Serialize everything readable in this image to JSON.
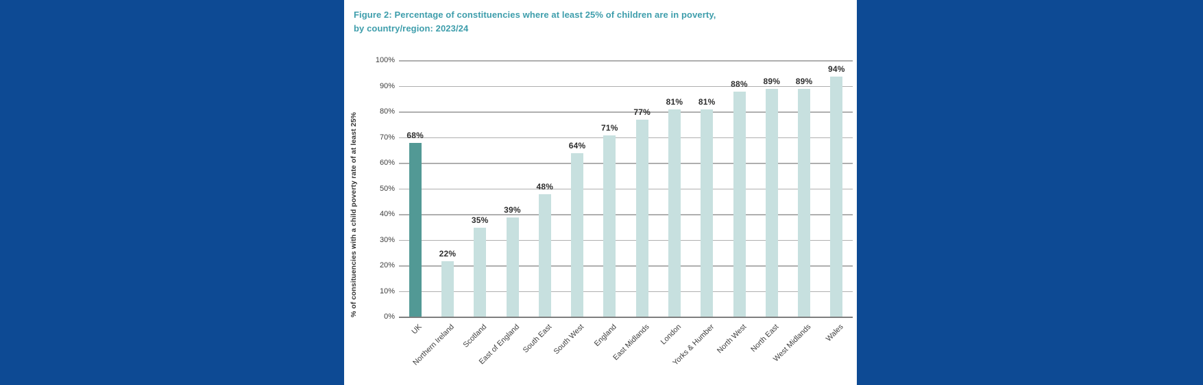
{
  "page": {
    "background_color": "#0d4a94",
    "panel_color": "#ffffff"
  },
  "chart_data": {
    "type": "bar",
    "title_line1": "Figure 2: Percentage of constituencies where at least 25% of children are in poverty,",
    "title_line2": "by country/region: 2023/24",
    "ylabel": "% of consituencies with a child poverty rate of at least 25%",
    "categories": [
      "UK",
      "Northern Ireland",
      "Scotland",
      "East of England",
      "South East",
      "South West",
      "England",
      "East Midlands",
      "London",
      "Yorks & Humber",
      "North West",
      "North East",
      "West Midlands",
      "Wales"
    ],
    "values": [
      68,
      22,
      35,
      39,
      48,
      64,
      71,
      77,
      81,
      81,
      88,
      89,
      89,
      94
    ],
    "data_labels": [
      "68%",
      "22%",
      "35%",
      "39%",
      "48%",
      "64%",
      "71%",
      "77%",
      "81%",
      "81%",
      "88%",
      "89%",
      "89%",
      "94%"
    ],
    "highlight_index": 0,
    "ylim": [
      0,
      100
    ],
    "yticks": [
      "0%",
      "10%",
      "20%",
      "30%",
      "40%",
      "50%",
      "60%",
      "70%",
      "80%",
      "90%",
      "100%"
    ],
    "grid": true,
    "legend": "none",
    "colors": {
      "bar_default": "#c7e0df",
      "bar_highlight": "#529995",
      "title_text": "#3d9dab",
      "gridline": "#aeaeae",
      "axis_line": "#7d7d7d",
      "value_label_text": "#2d2d2d",
      "tick_text": "#3d3d3d"
    }
  }
}
